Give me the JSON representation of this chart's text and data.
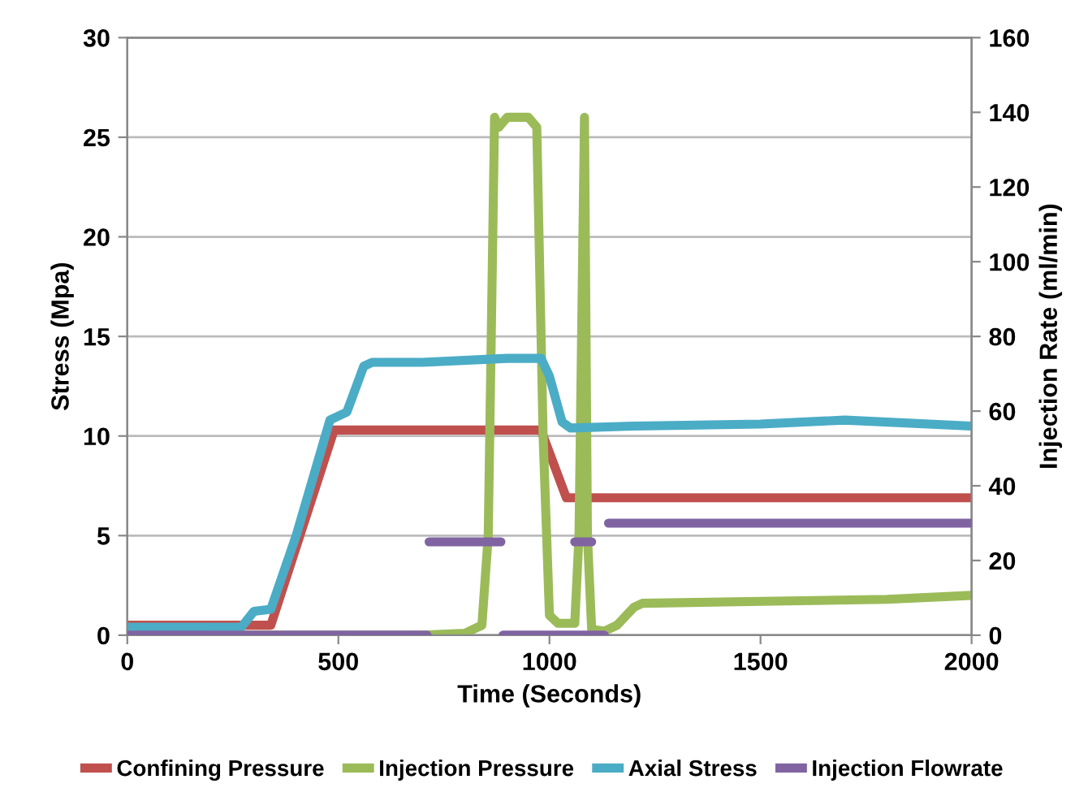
{
  "chart_data": {
    "type": "line",
    "xlabel": "Time (Seconds)",
    "ylabel": "Stress (Mpa)",
    "y2label": "Injection Rate (ml/min)",
    "xlim": [
      0,
      2000
    ],
    "xticks": [
      0,
      500,
      1000,
      1500,
      2000
    ],
    "ylim": [
      0,
      30
    ],
    "yticks": [
      0,
      5,
      10,
      15,
      20,
      25,
      30
    ],
    "y2lim": [
      0,
      160
    ],
    "y2ticks": [
      0,
      20,
      40,
      60,
      80,
      100,
      120,
      140,
      160
    ],
    "grid": "y",
    "legend": "bottom",
    "line_style": "solid",
    "series": [
      {
        "name": "Confining Pressure",
        "color": "#c0504d",
        "x": [
          0,
          340,
          490,
          980,
          1040,
          2000
        ],
        "values": [
          0.5,
          0.5,
          10.3,
          10.3,
          6.9,
          6.9
        ]
      },
      {
        "name": "Injection Pressure",
        "color": "#9bbb59",
        "x": [
          0,
          700,
          800,
          840,
          855,
          870,
          880,
          900,
          950,
          970,
          985,
          1000,
          1020,
          1060,
          1070,
          1083,
          1090,
          1100,
          1130,
          1160,
          1200,
          1220,
          1500,
          1800,
          2000
        ],
        "values": [
          0,
          0,
          0.1,
          0.5,
          5,
          26,
          25.5,
          26,
          26,
          25.5,
          10,
          1,
          0.6,
          0.6,
          5,
          26,
          5,
          0.3,
          0.2,
          0.5,
          1.4,
          1.6,
          1.7,
          1.8,
          2.0
        ]
      },
      {
        "name": "Axial Stress",
        "color": "#4bacc6",
        "x": [
          0,
          270,
          300,
          340,
          400,
          480,
          520,
          560,
          580,
          700,
          900,
          980,
          1000,
          1030,
          1050,
          1200,
          1500,
          1700,
          2000
        ],
        "values": [
          0.4,
          0.4,
          1.2,
          1.3,
          5,
          10.8,
          11.2,
          13.5,
          13.7,
          13.7,
          13.9,
          13.9,
          13,
          10.7,
          10.4,
          10.5,
          10.6,
          10.8,
          10.5
        ]
      },
      {
        "name": "Injection Flowrate",
        "color": "#8064a2",
        "axis": "y2",
        "x": [
          0,
          710
        ],
        "values": [
          0,
          0
        ]
      },
      {
        "color": "#8064a2",
        "axis": "y2",
        "x": [
          715,
          885
        ],
        "values": [
          25,
          25
        ]
      },
      {
        "color": "#8064a2",
        "axis": "y2",
        "x": [
          890,
          1130
        ],
        "values": [
          0,
          0
        ]
      },
      {
        "color": "#8064a2",
        "axis": "y2",
        "x": [
          1060,
          1100
        ],
        "values": [
          25,
          25
        ]
      },
      {
        "color": "#8064a2",
        "axis": "y2",
        "x": [
          1140,
          2000
        ],
        "values": [
          30,
          30
        ]
      }
    ]
  }
}
